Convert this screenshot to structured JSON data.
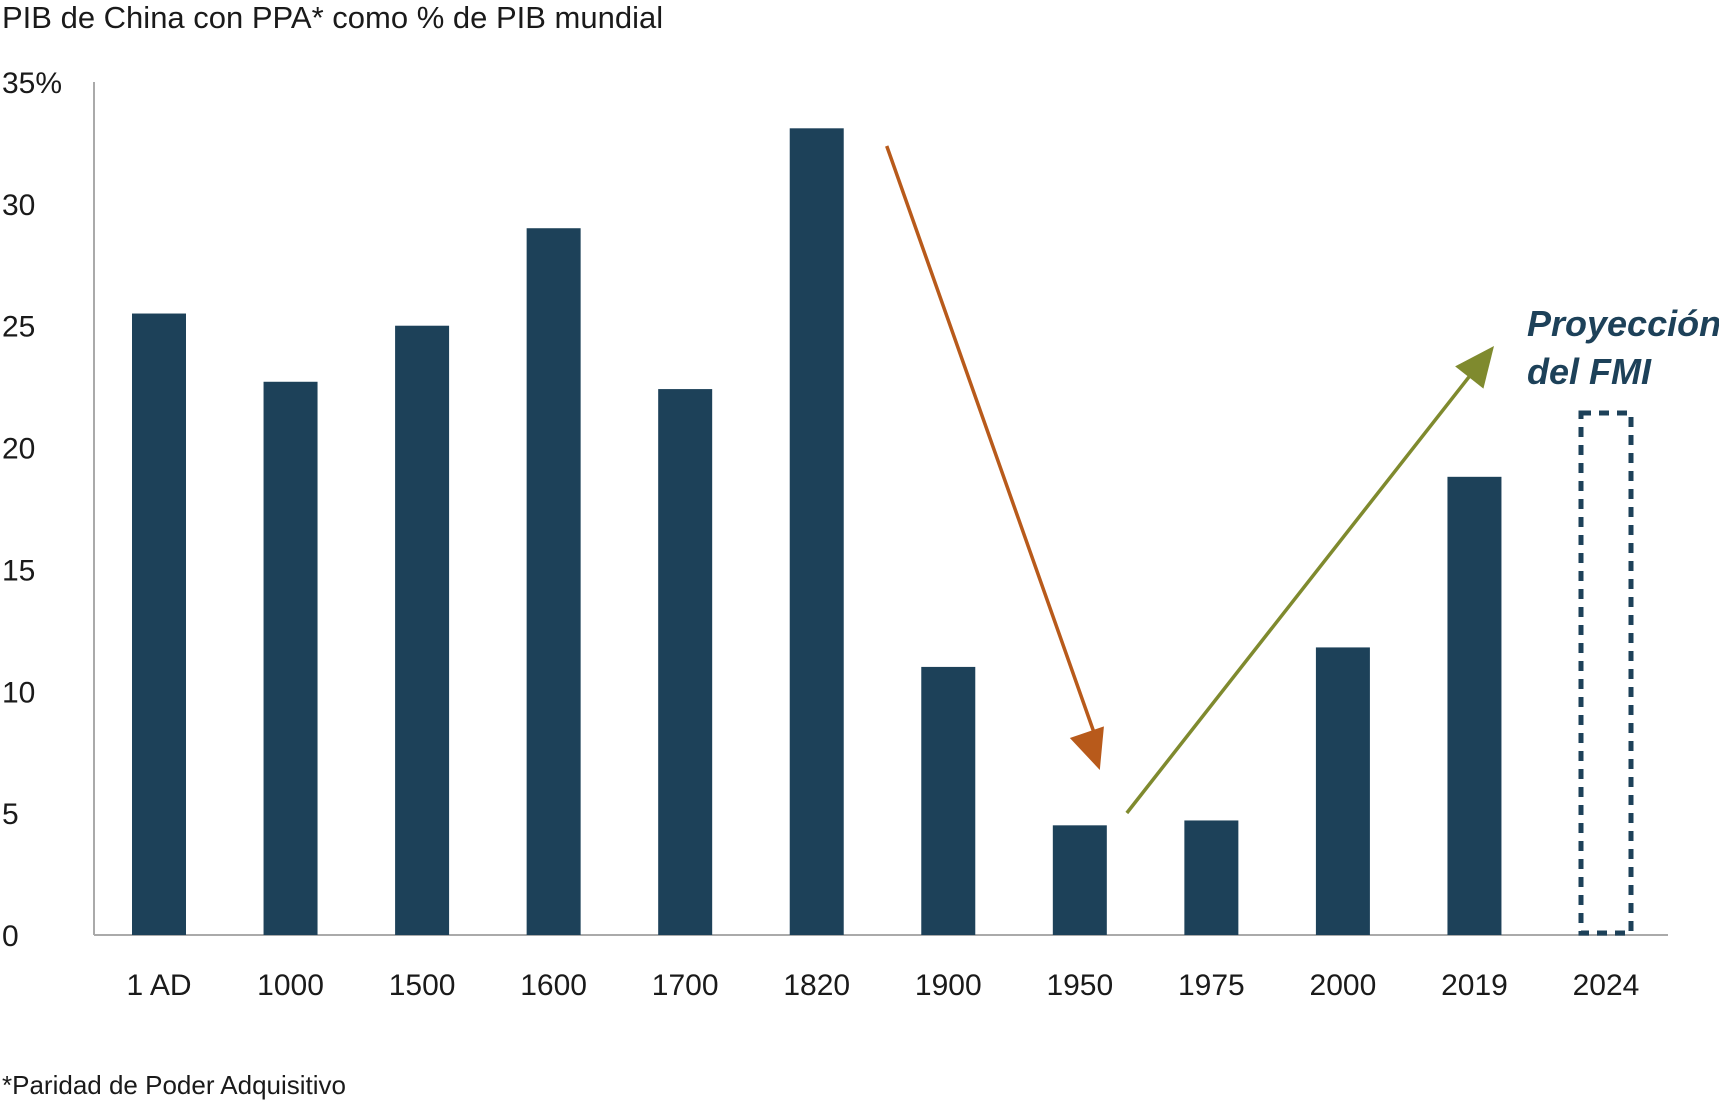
{
  "title": "PIB de China con PPA* como % de PIB mundial",
  "footnote": "*Paridad de Poder Adquisitivo",
  "annotation": {
    "line1": "Proyección",
    "line2": "del FMI"
  },
  "colors": {
    "bar": "#1d4159",
    "axis": "#aaaaaa",
    "decline_arrow": "#b85a1b",
    "rise_arrow": "#7f8a2e",
    "annotation": "#1d4159"
  },
  "chart_data": {
    "type": "bar",
    "title": "PIB de China con PPA* como % de PIB mundial",
    "categories": [
      "1 AD",
      "1000",
      "1500",
      "1600",
      "1700",
      "1820",
      "1900",
      "1950",
      "1975",
      "2000",
      "2019",
      "2024"
    ],
    "values": [
      25.5,
      22.7,
      25.0,
      29.0,
      22.4,
      33.1,
      11.0,
      4.5,
      4.7,
      11.8,
      18.8,
      null
    ],
    "projection_category": "2024",
    "projection_style": "dashed outline (no value shown)",
    "ylim": [
      0,
      35
    ],
    "yticks": [
      0,
      5,
      10,
      15,
      20,
      25,
      30,
      35
    ],
    "ytick_labels": [
      "0",
      "5",
      "10",
      "15",
      "20",
      "25",
      "30",
      "35%"
    ],
    "grid": false,
    "annotations": [
      {
        "type": "arrow",
        "meaning": "decline",
        "from": "1820",
        "to": "1950"
      },
      {
        "type": "arrow",
        "meaning": "rise",
        "from": "1950",
        "to": "2024"
      }
    ]
  }
}
